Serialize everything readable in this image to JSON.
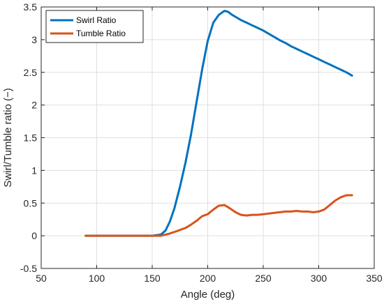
{
  "chart_data": {
    "type": "line",
    "xlabel": "Angle (deg)",
    "ylabel": "Swirl/Tumble ratio (−)",
    "xlim": [
      50,
      350
    ],
    "ylim": [
      -0.5,
      3.5
    ],
    "xticks": [
      50,
      100,
      150,
      200,
      250,
      300,
      350
    ],
    "yticks": [
      -0.5,
      0,
      0.5,
      1,
      1.5,
      2,
      2.5,
      3,
      3.5
    ],
    "xtick_labels": [
      "50",
      "100",
      "150",
      "200",
      "250",
      "300",
      "350"
    ],
    "ytick_labels": [
      "-0.5",
      "0",
      "0.5",
      "1",
      "1.5",
      "2",
      "2.5",
      "3",
      "3.5"
    ],
    "grid": true,
    "legend_position": "top-left",
    "series": [
      {
        "name": "Swirl Ratio",
        "color": "#0072BD",
        "x": [
          90,
          150,
          158,
          162,
          166,
          170,
          175,
          180,
          185,
          190,
          195,
          200,
          205,
          210,
          215,
          218,
          222,
          226,
          230,
          235,
          240,
          245,
          250,
          255,
          260,
          265,
          270,
          275,
          280,
          285,
          290,
          295,
          300,
          305,
          310,
          315,
          320,
          325,
          330
        ],
        "y": [
          0,
          0,
          0.02,
          0.08,
          0.22,
          0.42,
          0.75,
          1.12,
          1.55,
          2.05,
          2.55,
          2.98,
          3.26,
          3.38,
          3.44,
          3.43,
          3.38,
          3.34,
          3.3,
          3.26,
          3.22,
          3.18,
          3.14,
          3.09,
          3.04,
          2.99,
          2.95,
          2.9,
          2.86,
          2.82,
          2.78,
          2.74,
          2.7,
          2.66,
          2.62,
          2.58,
          2.54,
          2.5,
          2.45
        ]
      },
      {
        "name": "Tumble Ratio",
        "color": "#D95319",
        "x": [
          90,
          150,
          158,
          165,
          172,
          180,
          185,
          190,
          195,
          200,
          205,
          210,
          215,
          220,
          225,
          230,
          235,
          240,
          245,
          250,
          255,
          260,
          265,
          270,
          275,
          280,
          285,
          290,
          295,
          300,
          305,
          310,
          315,
          320,
          325,
          330
        ],
        "y": [
          0,
          0,
          0.0,
          0.03,
          0.07,
          0.12,
          0.17,
          0.23,
          0.3,
          0.33,
          0.4,
          0.46,
          0.47,
          0.42,
          0.36,
          0.32,
          0.31,
          0.32,
          0.32,
          0.33,
          0.34,
          0.35,
          0.36,
          0.37,
          0.37,
          0.38,
          0.37,
          0.37,
          0.36,
          0.37,
          0.4,
          0.47,
          0.54,
          0.59,
          0.62,
          0.62
        ]
      }
    ]
  }
}
